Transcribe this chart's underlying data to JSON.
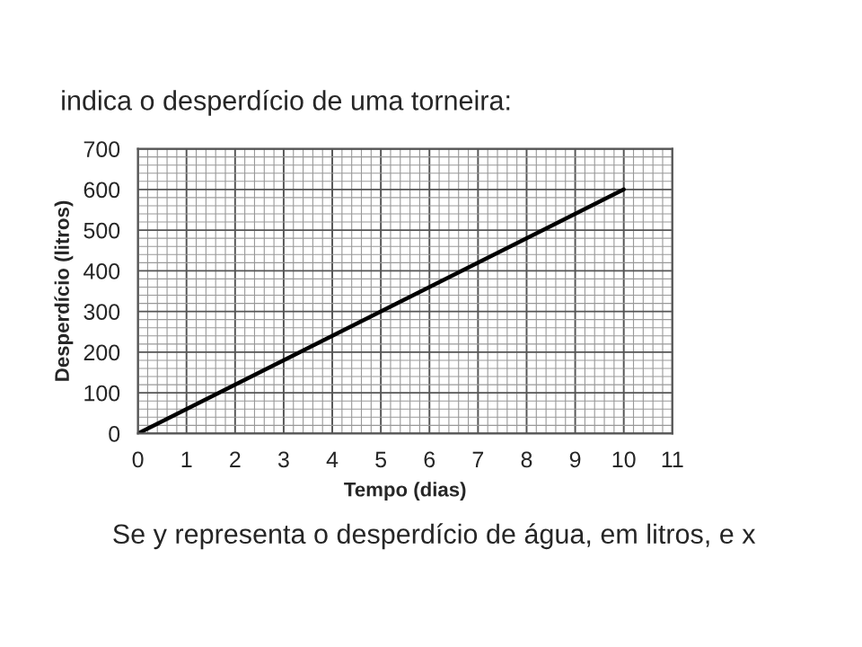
{
  "chart_data": {
    "type": "line",
    "title": "indica o desperdício de uma torneira:",
    "xlabel": "Tempo (dias)",
    "ylabel": "Desperdício (litros)",
    "x": [
      0,
      10
    ],
    "series": [
      {
        "color": "#000000",
        "values": [
          0,
          600
        ]
      }
    ],
    "xlim": [
      0,
      11
    ],
    "xticks": [
      0,
      1,
      2,
      3,
      4,
      5,
      6,
      7,
      8,
      9,
      10,
      11
    ],
    "ylim": [
      0,
      700
    ],
    "yticks": [
      0,
      100,
      200,
      300,
      400,
      500,
      600,
      700
    ],
    "grid": true,
    "marker": "none",
    "line_style": "solid",
    "annotations": [
      "Se y representa o desperdício de água, em litros, e x"
    ]
  }
}
